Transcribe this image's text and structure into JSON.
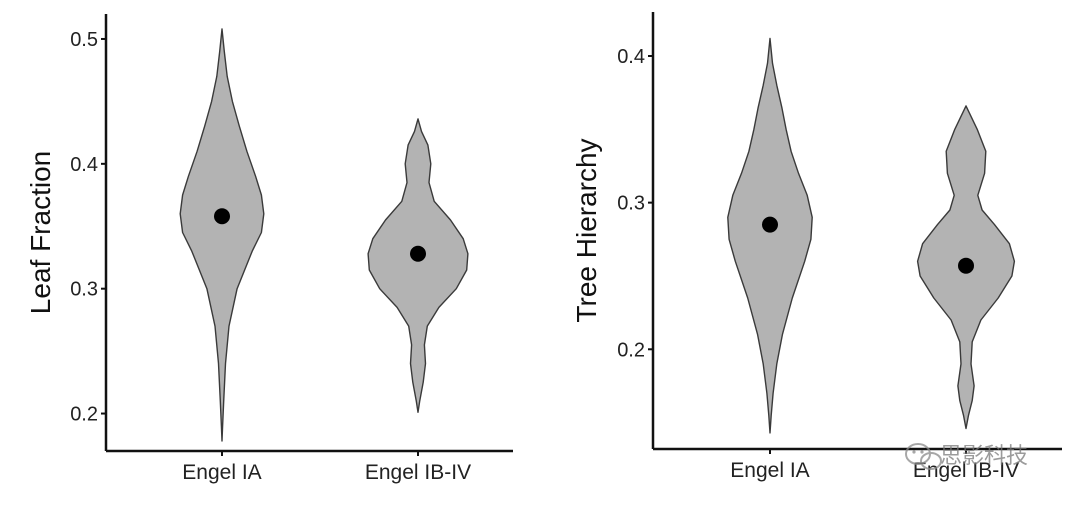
{
  "chart_data": [
    {
      "type": "violin",
      "ylabel": "Leaf Fraction",
      "xlabel": "",
      "categories": [
        "Engel IA",
        "Engel IB-IV"
      ],
      "ylim": [
        0.17,
        0.52
      ],
      "yticks": [
        0.2,
        0.3,
        0.4,
        0.5
      ],
      "ytick_labels": [
        "0.2",
        "0.3",
        "0.4",
        "0.5"
      ],
      "grid": false,
      "points": [
        0.358,
        0.328
      ],
      "violins": [
        {
          "category": "Engel IA",
          "min": 0.178,
          "max": 0.508,
          "density": [
            [
              0.178,
              0.0
            ],
            [
              0.19,
              0.01
            ],
            [
              0.21,
              0.03
            ],
            [
              0.24,
              0.06
            ],
            [
              0.27,
              0.12
            ],
            [
              0.3,
              0.26
            ],
            [
              0.33,
              0.52
            ],
            [
              0.345,
              0.68
            ],
            [
              0.36,
              0.72
            ],
            [
              0.375,
              0.68
            ],
            [
              0.39,
              0.58
            ],
            [
              0.41,
              0.43
            ],
            [
              0.43,
              0.3
            ],
            [
              0.45,
              0.18
            ],
            [
              0.47,
              0.09
            ],
            [
              0.49,
              0.04
            ],
            [
              0.508,
              0.0
            ]
          ]
        },
        {
          "category": "Engel IB-IV",
          "min": 0.201,
          "max": 0.436,
          "density": [
            [
              0.201,
              0.0
            ],
            [
              0.21,
              0.03
            ],
            [
              0.225,
              0.09
            ],
            [
              0.24,
              0.13
            ],
            [
              0.255,
              0.11
            ],
            [
              0.27,
              0.16
            ],
            [
              0.285,
              0.36
            ],
            [
              0.3,
              0.66
            ],
            [
              0.315,
              0.84
            ],
            [
              0.328,
              0.86
            ],
            [
              0.34,
              0.78
            ],
            [
              0.355,
              0.56
            ],
            [
              0.37,
              0.28
            ],
            [
              0.385,
              0.19
            ],
            [
              0.4,
              0.22
            ],
            [
              0.415,
              0.17
            ],
            [
              0.426,
              0.06
            ],
            [
              0.436,
              0.0
            ]
          ]
        }
      ]
    },
    {
      "type": "violin",
      "ylabel": "Tree Hierarchy",
      "xlabel": "",
      "categories": [
        "Engel IA",
        "Engel IB-IV"
      ],
      "ylim": [
        0.132,
        0.43
      ],
      "yticks": [
        0.2,
        0.3,
        0.4
      ],
      "ytick_labels": [
        "0.2",
        "0.3",
        "0.4"
      ],
      "grid": false,
      "points": [
        0.285,
        0.257
      ],
      "violins": [
        {
          "category": "Engel IA",
          "min": 0.143,
          "max": 0.412,
          "density": [
            [
              0.143,
              0.0
            ],
            [
              0.155,
              0.02
            ],
            [
              0.17,
              0.05
            ],
            [
              0.19,
              0.11
            ],
            [
              0.21,
              0.2
            ],
            [
              0.235,
              0.36
            ],
            [
              0.26,
              0.56
            ],
            [
              0.275,
              0.66
            ],
            [
              0.29,
              0.68
            ],
            [
              0.305,
              0.6
            ],
            [
              0.32,
              0.46
            ],
            [
              0.335,
              0.34
            ],
            [
              0.35,
              0.26
            ],
            [
              0.365,
              0.19
            ],
            [
              0.38,
              0.11
            ],
            [
              0.395,
              0.04
            ],
            [
              0.412,
              0.0
            ]
          ]
        },
        {
          "category": "Engel IB-IV",
          "min": 0.146,
          "max": 0.366,
          "density": [
            [
              0.146,
              0.0
            ],
            [
              0.155,
              0.04
            ],
            [
              0.165,
              0.1
            ],
            [
              0.175,
              0.13
            ],
            [
              0.19,
              0.08
            ],
            [
              0.205,
              0.1
            ],
            [
              0.22,
              0.24
            ],
            [
              0.235,
              0.52
            ],
            [
              0.25,
              0.74
            ],
            [
              0.26,
              0.78
            ],
            [
              0.272,
              0.7
            ],
            [
              0.285,
              0.46
            ],
            [
              0.295,
              0.26
            ],
            [
              0.305,
              0.19
            ],
            [
              0.32,
              0.3
            ],
            [
              0.335,
              0.32
            ],
            [
              0.35,
              0.18
            ],
            [
              0.366,
              0.0
            ]
          ]
        }
      ]
    }
  ],
  "colors": {
    "violin_fill": "#b3b3b3",
    "violin_stroke": "#3a3a3a",
    "point": "#000000",
    "axis": "#111111"
  },
  "watermark": {
    "icon": "wechat-icon",
    "text": "思影科技"
  }
}
